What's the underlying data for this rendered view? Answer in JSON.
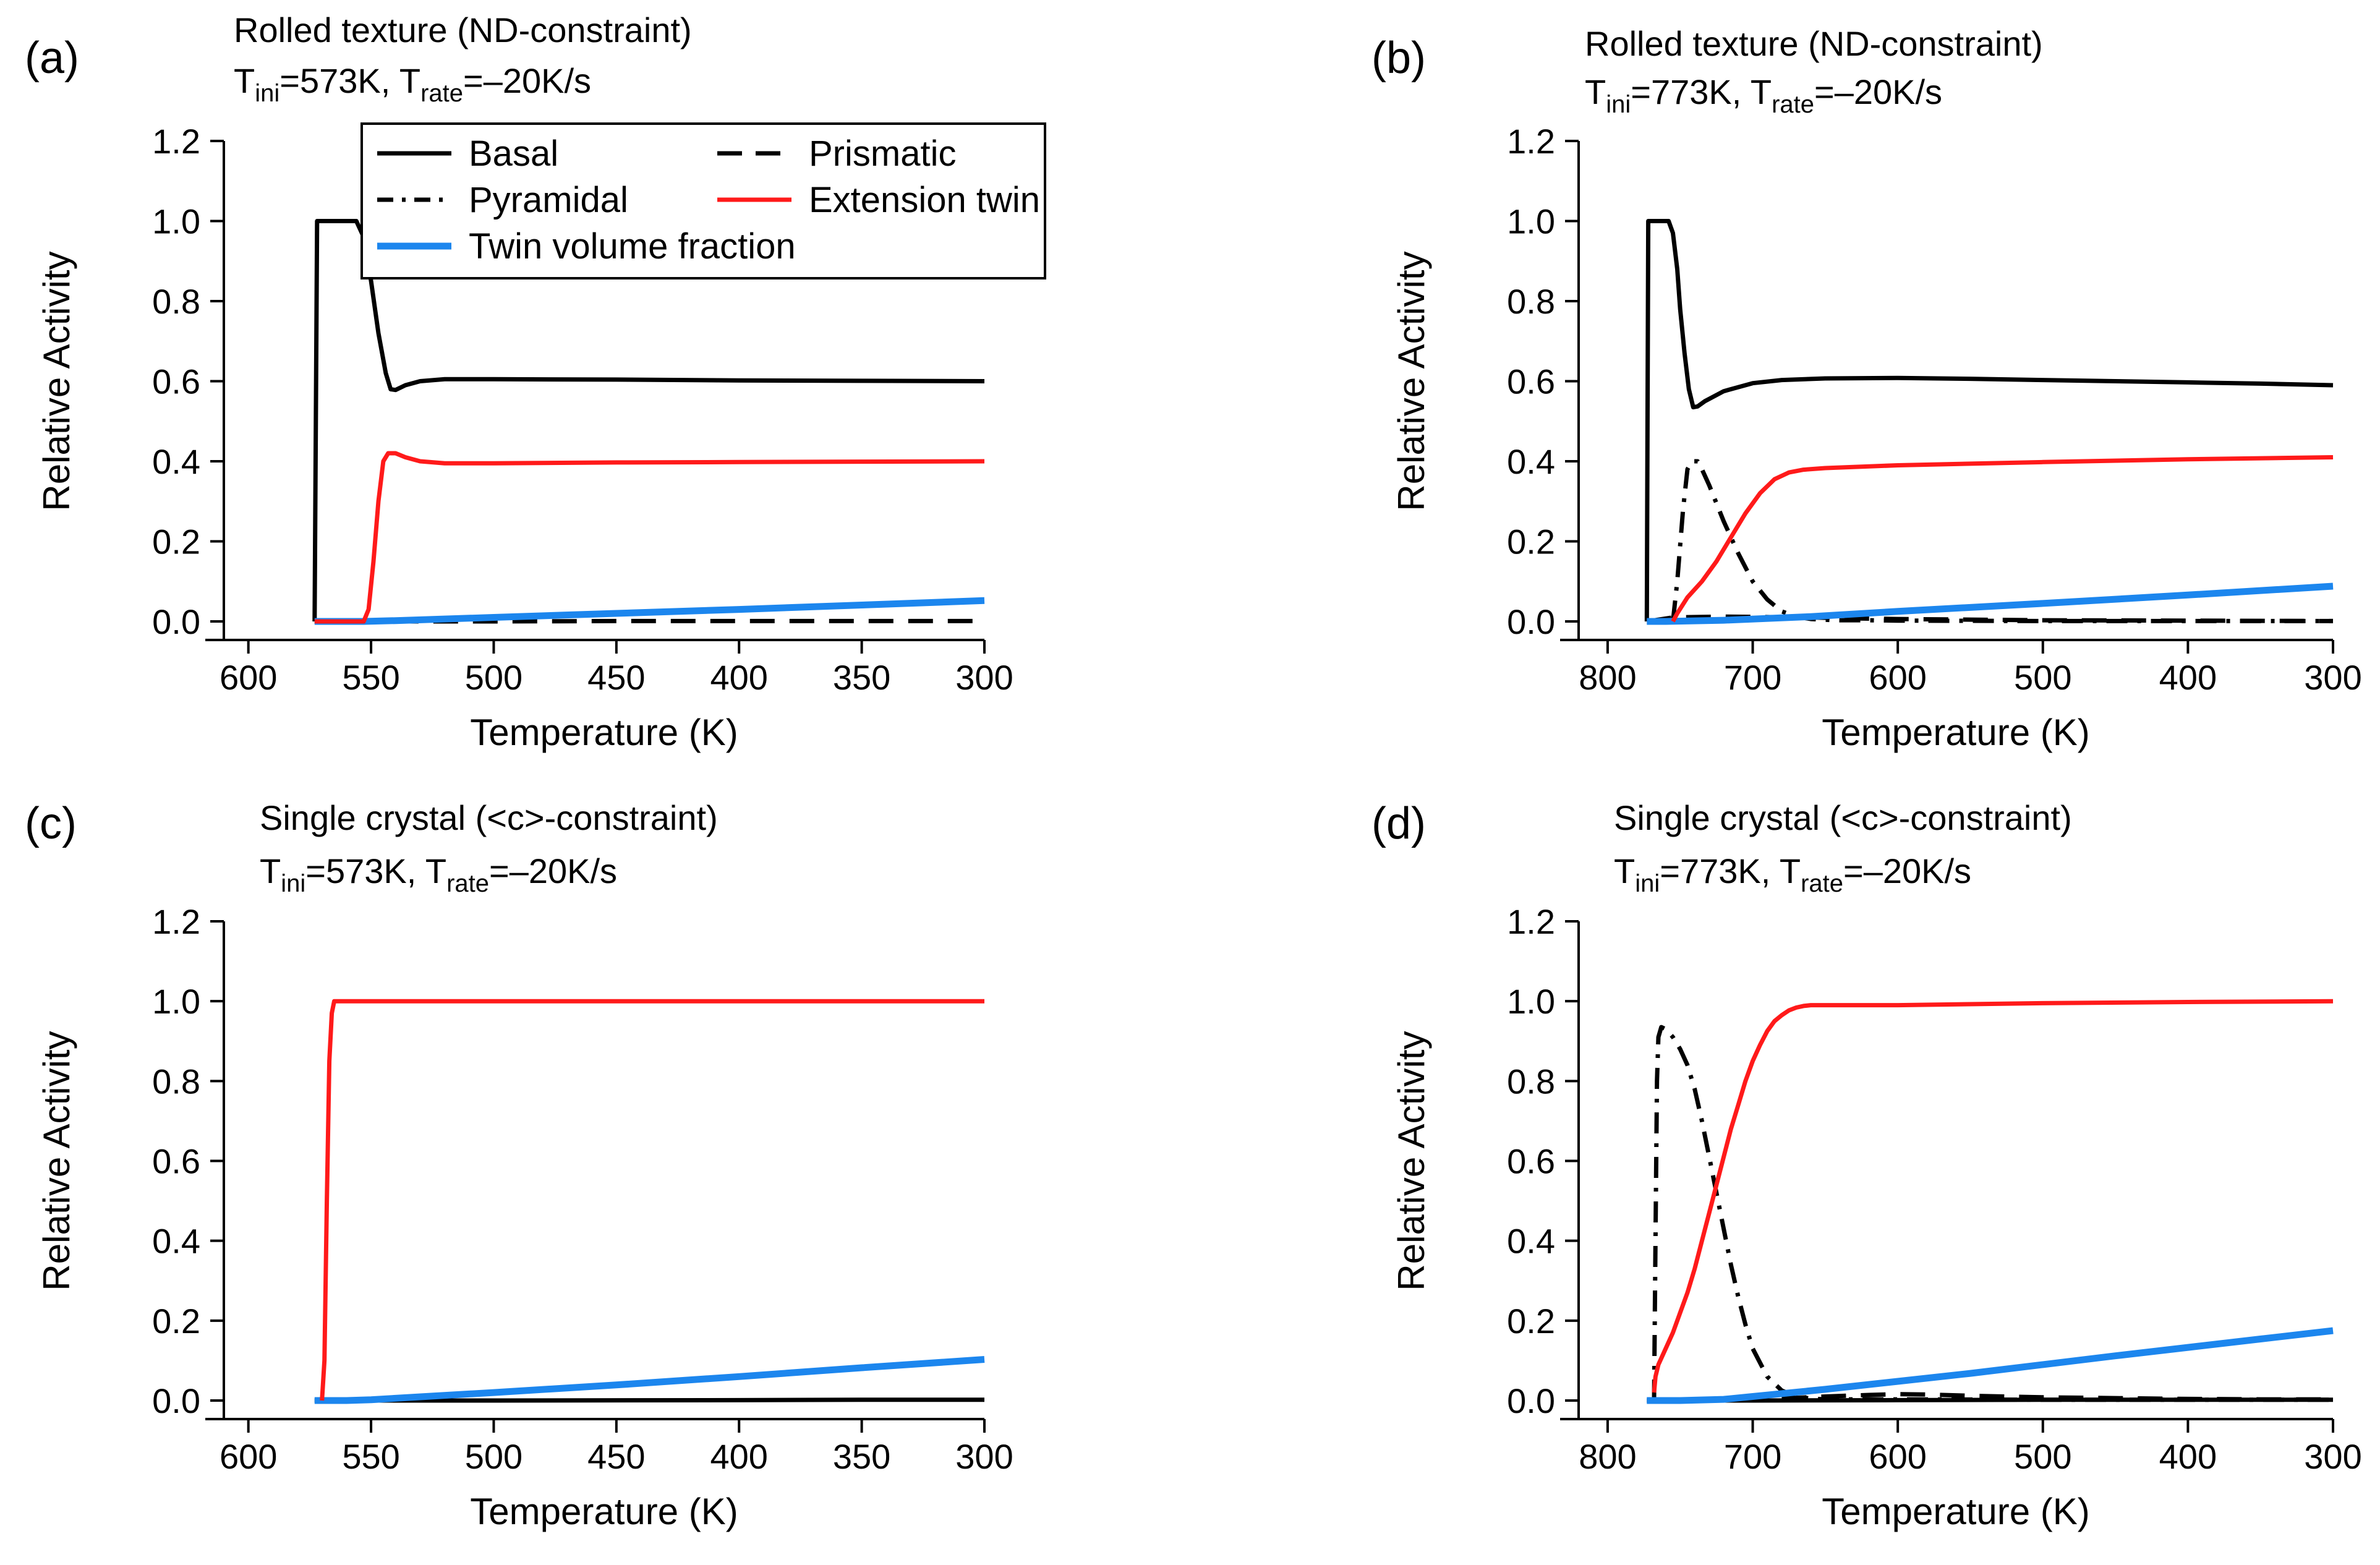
{
  "chart_data": [
    {
      "type": "line",
      "panel_label": "(a)",
      "caption_line1": "Rolled texture (ND-constraint)",
      "caption_line2": {
        "t_ini_label": "T",
        "t_ini_sub": "ini",
        "t_ini_value": "=573K, ",
        "t_rate_label": "T",
        "t_rate_sub": "rate",
        "t_rate_value": "=–20K/s"
      },
      "xlabel": "Temperature (K)",
      "ylabel": "Relative Activity",
      "xlim": [
        610,
        300
      ],
      "ylim": [
        0,
        1.2
      ],
      "xticks": [
        600,
        550,
        500,
        450,
        400,
        350,
        300
      ],
      "xticklabels": [
        "600",
        "550",
        "500",
        "450",
        "400",
        "350",
        "300"
      ],
      "yticks": [
        0,
        0.2,
        0.4,
        0.6,
        0.8,
        1.0,
        1.2
      ],
      "yticklabels": [
        "0.0",
        "0.2",
        "0.4",
        "0.6",
        "0.8",
        "1.0",
        "1.2"
      ],
      "series": [
        {
          "name": "Basal",
          "color": "#000000",
          "style": "solid",
          "x": [
            573,
            572.5,
            572,
            565,
            560,
            556,
            553,
            550,
            547,
            544,
            542,
            540,
            536,
            530,
            520,
            500,
            450,
            400,
            350,
            300
          ],
          "y": [
            0,
            0.5,
            1.0,
            1.0,
            1.0,
            1.0,
            0.96,
            0.85,
            0.72,
            0.62,
            0.58,
            0.578,
            0.59,
            0.6,
            0.605,
            0.605,
            0.604,
            0.602,
            0.601,
            0.6
          ]
        },
        {
          "name": "Prismatic",
          "color": "#000000",
          "style": "dashed",
          "x": [
            573,
            500,
            450,
            400,
            350,
            300
          ],
          "y": [
            0,
            0,
            0.001,
            0.001,
            0.001,
            0.001
          ]
        },
        {
          "name": "Extension twin",
          "color": "#ff1a1a",
          "style": "solid",
          "x": [
            573,
            553,
            551,
            549,
            547,
            545,
            543,
            540,
            536,
            530,
            520,
            500,
            450,
            400,
            350,
            300
          ],
          "y": [
            0,
            0,
            0.03,
            0.15,
            0.3,
            0.4,
            0.42,
            0.42,
            0.41,
            0.4,
            0.395,
            0.395,
            0.397,
            0.398,
            0.399,
            0.4
          ]
        },
        {
          "name": "Twin volume fraction",
          "color": "#1c86ee",
          "style": "solid",
          "x": [
            573,
            553,
            540,
            500,
            450,
            400,
            350,
            300
          ],
          "y": [
            0,
            0,
            0.002,
            0.01,
            0.02,
            0.03,
            0.041,
            0.052
          ]
        }
      ],
      "legend": {
        "placement": "top-center",
        "entries": [
          {
            "name": "Basal",
            "color": "#000000",
            "style": "solid"
          },
          {
            "name": "Prismatic",
            "color": "#000000",
            "style": "dashed"
          },
          {
            "name": "Pyramidal",
            "color": "#000000",
            "style": "dashdot"
          },
          {
            "name": "Extension twin",
            "color": "#ff1a1a",
            "style": "solid"
          },
          {
            "name": "Twin volume fraction",
            "color": "#1c86ee",
            "style": "solid"
          }
        ]
      }
    },
    {
      "type": "line",
      "panel_label": "(b)",
      "caption_line1": "Rolled texture (ND-constraint)",
      "caption_line2": {
        "t_ini_label": "T",
        "t_ini_sub": "ini",
        "t_ini_value": "=773K, ",
        "t_rate_label": "T",
        "t_rate_sub": "rate",
        "t_rate_value": "=–20K/s"
      },
      "xlabel": "Temperature (K)",
      "ylabel": "Relative Activity",
      "xlim": [
        820,
        300
      ],
      "ylim": [
        0,
        1.2
      ],
      "xticks": [
        800,
        700,
        600,
        500,
        400,
        300
      ],
      "xticklabels": [
        "800",
        "700",
        "600",
        "500",
        "400",
        "300"
      ],
      "yticks": [
        0,
        0.2,
        0.4,
        0.6,
        0.8,
        1.0,
        1.2
      ],
      "yticklabels": [
        "0.0",
        "0.2",
        "0.4",
        "0.6",
        "0.8",
        "1.0",
        "1.2"
      ],
      "series": [
        {
          "name": "Basal",
          "color": "#000000",
          "style": "solid",
          "x": [
            773,
            772.5,
            772,
            765,
            758,
            755,
            752,
            750,
            747,
            744,
            741,
            738,
            733,
            720,
            700,
            680,
            650,
            600,
            550,
            500,
            450,
            400,
            350,
            300
          ],
          "y": [
            0,
            0.5,
            1.0,
            1.0,
            1.0,
            0.97,
            0.88,
            0.78,
            0.67,
            0.58,
            0.535,
            0.537,
            0.55,
            0.575,
            0.595,
            0.603,
            0.607,
            0.608,
            0.606,
            0.603,
            0.6,
            0.597,
            0.594,
            0.59
          ]
        },
        {
          "name": "Prismatic",
          "color": "#000000",
          "style": "dashed",
          "x": [
            773,
            755,
            720,
            660,
            640,
            600,
            500,
            400,
            300
          ],
          "y": [
            0,
            0.01,
            0.012,
            0.01,
            0.008,
            0.006,
            0.003,
            0.002,
            0.001
          ]
        },
        {
          "name": "Pyramidal",
          "color": "#000000",
          "style": "dashdot",
          "x": [
            755,
            752,
            748,
            745,
            742,
            738,
            735,
            730,
            720,
            710,
            700,
            690,
            680,
            670,
            660,
            650,
            640,
            620,
            600,
            500,
            400,
            300
          ],
          "y": [
            0,
            0.1,
            0.28,
            0.38,
            0.4,
            0.4,
            0.38,
            0.34,
            0.25,
            0.17,
            0.1,
            0.055,
            0.025,
            0.012,
            0.006,
            0.004,
            0.003,
            0.003,
            0.002,
            0.001,
            0.001,
            0.001
          ]
        },
        {
          "name": "Extension twin",
          "color": "#ff1a1a",
          "style": "solid",
          "x": [
            755,
            752,
            745,
            735,
            725,
            715,
            705,
            695,
            685,
            675,
            665,
            650,
            600,
            500,
            400,
            300
          ],
          "y": [
            0,
            0.02,
            0.06,
            0.1,
            0.15,
            0.21,
            0.27,
            0.32,
            0.355,
            0.372,
            0.379,
            0.383,
            0.39,
            0.398,
            0.405,
            0.41
          ]
        },
        {
          "name": "Twin volume fraction",
          "color": "#1c86ee",
          "style": "solid",
          "x": [
            773,
            760,
            720,
            660,
            600,
            500,
            400,
            300
          ],
          "y": [
            0,
            0,
            0.003,
            0.012,
            0.025,
            0.045,
            0.066,
            0.088
          ]
        }
      ]
    },
    {
      "type": "line",
      "panel_label": "(c)",
      "caption_line1": "Single crystal (<c>-constraint)",
      "caption_line2": {
        "t_ini_label": "T",
        "t_ini_sub": "ini",
        "t_ini_value": "=573K, ",
        "t_rate_label": "T",
        "t_rate_sub": "rate",
        "t_rate_value": "=–20K/s"
      },
      "xlabel": "Temperature (K)",
      "ylabel": "Relative Activity",
      "xlim": [
        610,
        300
      ],
      "ylim": [
        0,
        1.2
      ],
      "xticks": [
        600,
        550,
        500,
        450,
        400,
        350,
        300
      ],
      "xticklabels": [
        "600",
        "550",
        "500",
        "450",
        "400",
        "350",
        "300"
      ],
      "yticks": [
        0,
        0.2,
        0.4,
        0.6,
        0.8,
        1.0,
        1.2
      ],
      "yticklabels": [
        "0.0",
        "0.2",
        "0.4",
        "0.6",
        "0.8",
        "1.0",
        "1.2"
      ],
      "series": [
        {
          "name": "Basal",
          "color": "#000000",
          "style": "solid",
          "x": [
            573,
            500,
            400,
            350,
            300
          ],
          "y": [
            0,
            0,
            0.001,
            0.002,
            0.002
          ]
        },
        {
          "name": "Extension twin",
          "color": "#ff1a1a",
          "style": "solid",
          "x": [
            570,
            569,
            568,
            567,
            566,
            565,
            560,
            500,
            400,
            300
          ],
          "y": [
            0,
            0.1,
            0.5,
            0.85,
            0.97,
            1.0,
            1.0,
            1.0,
            1.0,
            1.0
          ]
        },
        {
          "name": "Twin volume fraction",
          "color": "#1c86ee",
          "style": "solid",
          "x": [
            573,
            560,
            550,
            500,
            450,
            400,
            350,
            300
          ],
          "y": [
            0,
            0,
            0.002,
            0.02,
            0.039,
            0.06,
            0.082,
            0.103
          ]
        }
      ]
    },
    {
      "type": "line",
      "panel_label": "(d)",
      "caption_line1": "Single crystal (<c>-constraint)",
      "caption_line2": {
        "t_ini_label": "T",
        "t_ini_sub": "ini",
        "t_ini_value": "=773K, ",
        "t_rate_label": "T",
        "t_rate_sub": "rate",
        "t_rate_value": "=–20K/s"
      },
      "xlabel": "Temperature (K)",
      "ylabel": "Relative Activity",
      "xlim": [
        820,
        300
      ],
      "ylim": [
        0,
        1.2
      ],
      "xticks": [
        800,
        700,
        600,
        500,
        400,
        300
      ],
      "xticklabels": [
        "800",
        "700",
        "600",
        "500",
        "400",
        "300"
      ],
      "yticks": [
        0,
        0.2,
        0.4,
        0.6,
        0.8,
        1.0,
        1.2
      ],
      "yticklabels": [
        "0.0",
        "0.2",
        "0.4",
        "0.6",
        "0.8",
        "1.0",
        "1.2"
      ],
      "series": [
        {
          "name": "Basal",
          "color": "#000000",
          "style": "solid",
          "x": [
            773,
            700,
            600,
            500,
            400,
            300
          ],
          "y": [
            0,
            0,
            0.001,
            0.002,
            0.002,
            0.002
          ]
        },
        {
          "name": "Prismatic",
          "color": "#000000",
          "style": "dashed",
          "x": [
            680,
            650,
            620,
            600,
            580,
            550,
            500,
            450,
            400,
            350,
            300
          ],
          "y": [
            0.005,
            0.01,
            0.014,
            0.016,
            0.015,
            0.012,
            0.008,
            0.006,
            0.004,
            0.003,
            0.003
          ]
        },
        {
          "name": "Pyramidal",
          "color": "#000000",
          "style": "dashdot",
          "x": [
            768,
            767,
            766,
            765,
            763,
            760,
            755,
            750,
            745,
            740,
            735,
            730,
            725,
            720,
            715,
            710,
            705,
            700,
            690,
            680,
            670,
            660,
            650,
            600,
            500,
            400,
            300
          ],
          "y": [
            0,
            0.4,
            0.8,
            0.91,
            0.935,
            0.93,
            0.91,
            0.88,
            0.84,
            0.78,
            0.7,
            0.61,
            0.52,
            0.43,
            0.34,
            0.26,
            0.19,
            0.13,
            0.06,
            0.025,
            0.01,
            0.005,
            0.003,
            0.003,
            0.002,
            0.002,
            0.002
          ]
        },
        {
          "name": "Extension twin",
          "color": "#ff1a1a",
          "style": "solid",
          "x": [
            768,
            767,
            765,
            760,
            755,
            750,
            745,
            740,
            735,
            730,
            725,
            720,
            715,
            710,
            705,
            700,
            695,
            690,
            685,
            680,
            675,
            670,
            665,
            660,
            650,
            600,
            500,
            400,
            300
          ],
          "y": [
            0.02,
            0.06,
            0.09,
            0.13,
            0.17,
            0.22,
            0.27,
            0.33,
            0.4,
            0.47,
            0.54,
            0.61,
            0.68,
            0.74,
            0.8,
            0.85,
            0.89,
            0.925,
            0.95,
            0.965,
            0.977,
            0.984,
            0.988,
            0.99,
            0.99,
            0.99,
            0.995,
            0.998,
            1.0
          ]
        },
        {
          "name": "Twin volume fraction",
          "color": "#1c86ee",
          "style": "solid",
          "x": [
            773,
            750,
            720,
            700,
            650,
            600,
            550,
            500,
            450,
            400,
            350,
            300
          ],
          "y": [
            0,
            0,
            0.003,
            0.01,
            0.028,
            0.048,
            0.068,
            0.09,
            0.112,
            0.133,
            0.154,
            0.175
          ]
        }
      ]
    }
  ]
}
